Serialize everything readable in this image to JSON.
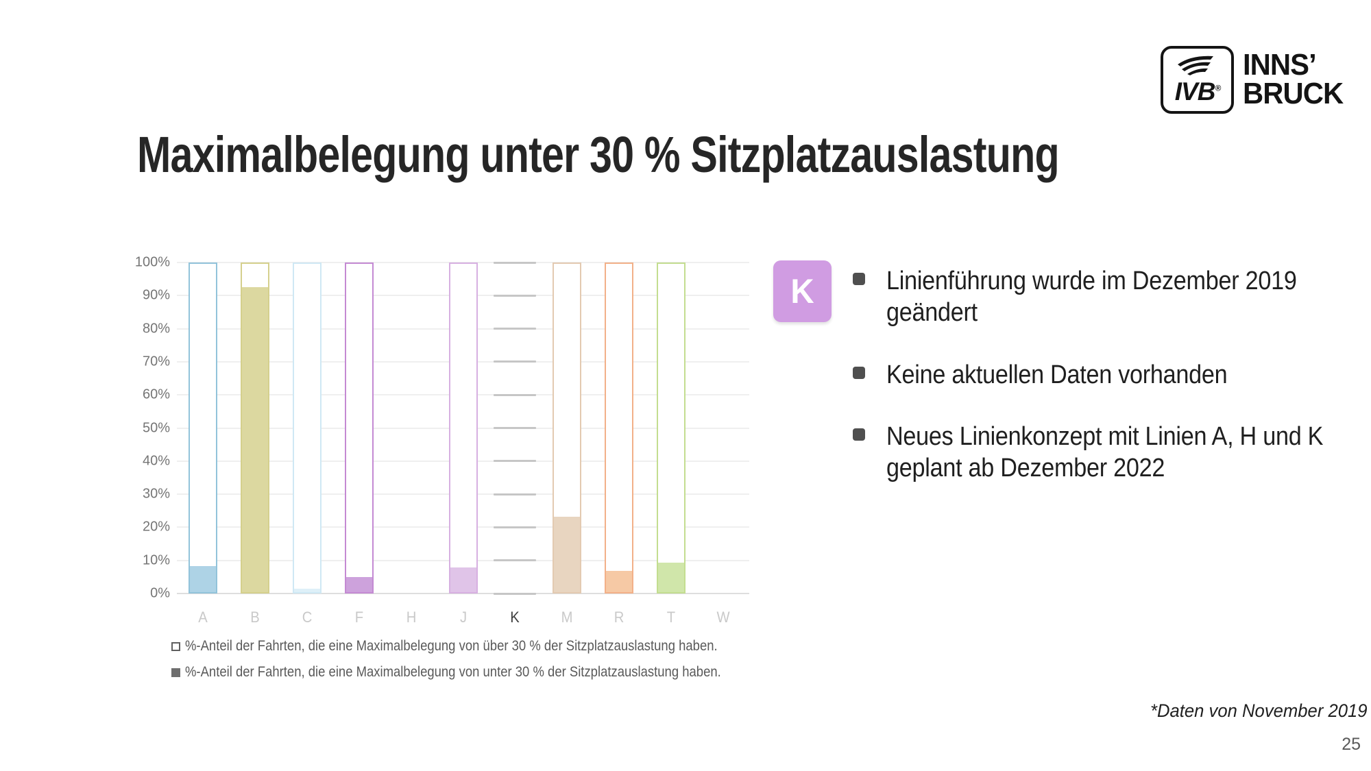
{
  "slide": {
    "title": "Maximalbelegung unter 30 % Sitzplatzauslastung",
    "footnote": "*Daten von November 2019",
    "page_number": "25"
  },
  "logo": {
    "ivb_label": "IVB",
    "registered_mark": "®",
    "city_line1": "INNS’",
    "city_line2": "BRUCK"
  },
  "line_badge": {
    "label": "K",
    "color": "#d09ce2"
  },
  "bullets": [
    {
      "text": "Linienführung wurde im Dezember 2019 geändert"
    },
    {
      "text": "Keine aktuellen Daten vorhanden"
    },
    {
      "text": "Neues Linienkonzept mit Linien A, H und K geplant ab Dezember 2022"
    }
  ],
  "chart_data": {
    "type": "bar",
    "stacked": true,
    "title": "",
    "xlabel": "",
    "ylabel": "",
    "ylim": [
      0,
      100
    ],
    "grid": "horizontal",
    "legend_position": "bottom-left",
    "categories": [
      "A",
      "B",
      "C",
      "F",
      "H",
      "J",
      "K",
      "M",
      "R",
      "T",
      "W"
    ],
    "highlighted_category": "K",
    "no_data_categories": [
      "H",
      "W"
    ],
    "dash_placeholder_category": "K",
    "series": [
      {
        "name": "%-Anteil der Fahrten, die eine Maximalbelegung von unter 30 % der Sitzplatzauslastung haben.",
        "marker": "filled-square",
        "values": [
          8,
          93,
          1,
          4.5,
          null,
          7.5,
          null,
          23,
          6.5,
          9,
          null
        ]
      },
      {
        "name": "%-Anteil der Fahrten, die eine Maximalbelegung von über 30 % der Sitzplatzauslastung haben.",
        "marker": "hollow-square",
        "values": [
          92,
          7,
          99,
          95.5,
          null,
          92.5,
          null,
          77,
          93.5,
          91,
          null
        ]
      }
    ],
    "ytick_labels": [
      "0%",
      "10%",
      "20%",
      "30%",
      "40%",
      "50%",
      "60%",
      "70%",
      "80%",
      "90%",
      "100%"
    ],
    "category_colors": {
      "A": {
        "fill": "#aed3e6",
        "outline": "#92c3da"
      },
      "B": {
        "fill": "#dcd8a0",
        "outline": "#d5d08d"
      },
      "C": {
        "fill": "#def0f8",
        "outline": "#cfe8f4"
      },
      "F": {
        "fill": "#cda2dc",
        "outline": "#c48ad3"
      },
      "H": null,
      "J": {
        "fill": "#e0c4e8",
        "outline": "#d7b0e1"
      },
      "K": null,
      "M": {
        "fill": "#e8d5c0",
        "outline": "#e3cab1"
      },
      "R": {
        "fill": "#f6c9a5",
        "outline": "#f2b088"
      },
      "T": {
        "fill": "#d0e6aa",
        "outline": "#c3dd90"
      },
      "W": null
    },
    "dash_color": "#c6c6c6",
    "axis_label_color": "#757575",
    "category_label_color": "#c9c9c9",
    "highlighted_category_label_color": "#3f3f3f"
  }
}
